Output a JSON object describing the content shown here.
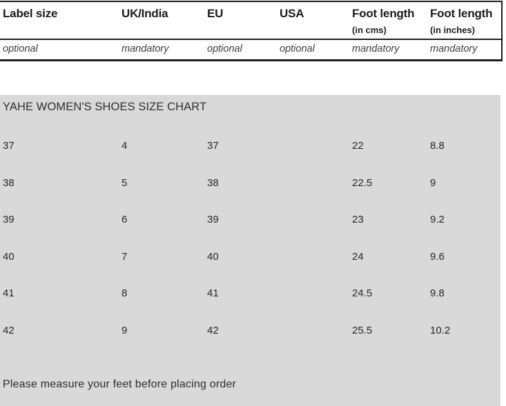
{
  "size_chart": {
    "title": "YAHE WOMEN'S SHOES SIZE CHART",
    "footer_note": "Please measure your feet before placing order",
    "columns": [
      {
        "label": "Label size",
        "sublabel": "",
        "requirement": "optional"
      },
      {
        "label": "UK/India",
        "sublabel": "",
        "requirement": "mandatory"
      },
      {
        "label": "EU",
        "sublabel": "",
        "requirement": "optional"
      },
      {
        "label": "USA",
        "sublabel": "",
        "requirement": "optional"
      },
      {
        "label": "Foot length",
        "sublabel": "(in cms)",
        "requirement": "mandatory"
      },
      {
        "label": "Foot length",
        "sublabel": "(in inches)",
        "requirement": "mandatory"
      }
    ],
    "rows": [
      [
        "37",
        "4",
        "37",
        "",
        "22",
        "8.8"
      ],
      [
        "38",
        "5",
        "38",
        "",
        "22.5",
        "9"
      ],
      [
        "39",
        "6",
        "39",
        "",
        "23",
        "9.2"
      ],
      [
        "40",
        "7",
        "40",
        "",
        "24",
        "9.6"
      ],
      [
        "41",
        "8",
        "41",
        "",
        "24.5",
        "9.8"
      ],
      [
        "42",
        "9",
        "42",
        "",
        "25.5",
        "10.2"
      ]
    ],
    "colors": {
      "table_background": "#d9d9d9",
      "rule_line": "#1c1c1c",
      "header_text": "#1b1b1b",
      "body_text": "#262626"
    }
  }
}
